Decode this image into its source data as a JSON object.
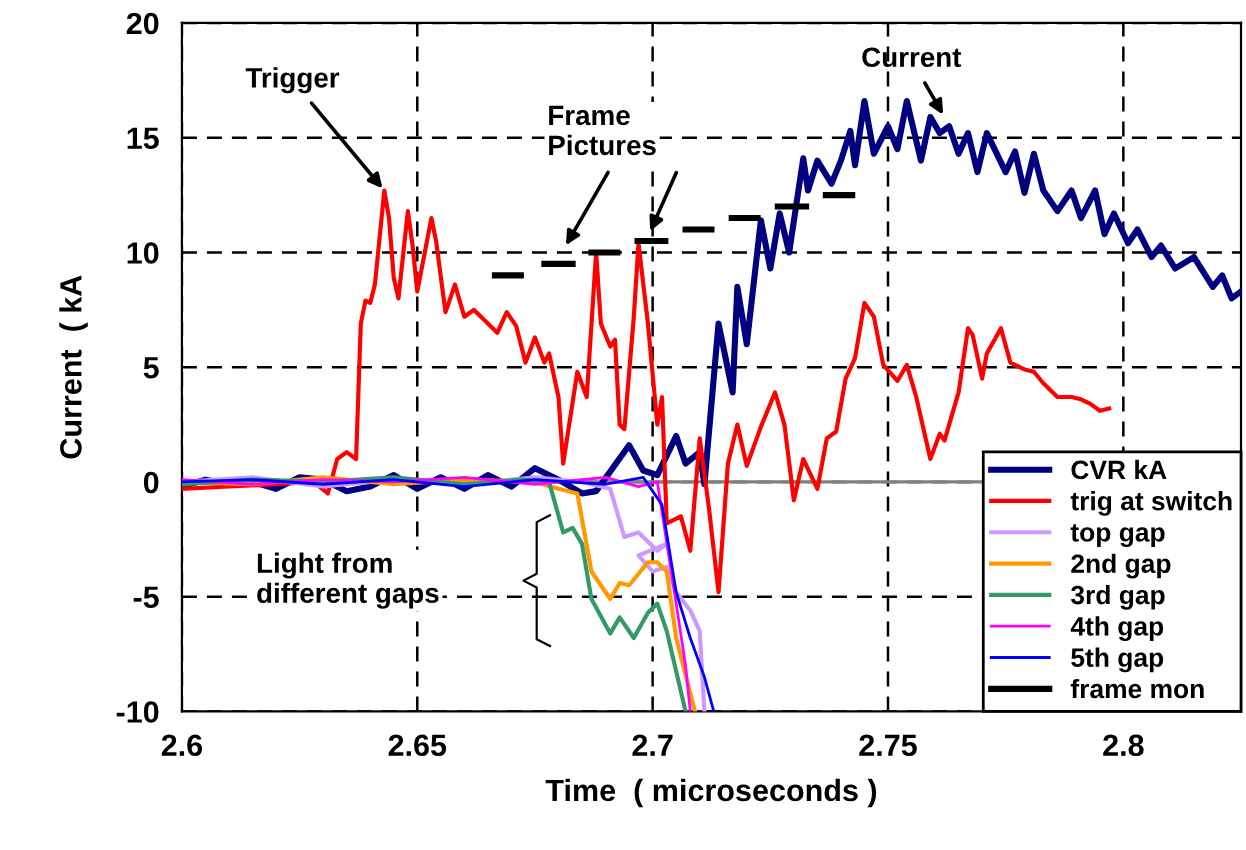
{
  "chart_data": {
    "type": "line",
    "xlabel": "Time  ( microseconds )",
    "ylabel": "Current  ( kA",
    "xlim": [
      2.6,
      2.825
    ],
    "xticks": [
      2.6,
      2.65,
      2.7,
      2.75,
      2.8
    ],
    "ylim": [
      -10,
      20
    ],
    "yticks": [
      -10,
      -5,
      0,
      5,
      10,
      15,
      20
    ],
    "grid": true,
    "legend": "bottom right",
    "marker": "none",
    "line_style": "solid",
    "ref_lines": [
      {
        "axis": "y",
        "value": 0,
        "color": "#808080"
      }
    ],
    "annotations": [
      {
        "text": "Trigger",
        "x": 2.643,
        "y": 12.7
      },
      "Frame\nPictures",
      {
        "text": "Current",
        "x": 2.762,
        "y": 15.9
      },
      "Light from\ndifferent gaps"
    ],
    "series": [
      {
        "name": "CVR kA",
        "color": "#000080",
        "x": [
          2.6,
          2.605,
          2.61,
          2.615,
          2.62,
          2.625,
          2.63,
          2.635,
          2.64,
          2.645,
          2.65,
          2.655,
          2.66,
          2.665,
          2.67,
          2.675,
          2.68,
          2.685,
          2.688,
          2.695,
          2.698,
          2.701,
          2.705,
          2.707,
          2.71,
          2.711,
          2.714,
          2.717,
          2.718,
          2.72,
          2.723,
          2.725,
          2.727,
          2.729,
          2.732,
          2.733,
          2.735,
          2.738,
          2.74,
          2.742,
          2.743,
          2.745,
          2.747,
          2.75,
          2.752,
          2.754,
          2.757,
          2.759,
          2.761,
          2.763,
          2.765,
          2.767,
          2.769,
          2.771,
          2.775,
          2.777,
          2.779,
          2.781,
          2.783,
          2.786,
          2.789,
          2.791,
          2.794,
          2.796,
          2.798,
          2.801,
          2.803,
          2.806,
          2.808,
          2.811,
          2.815,
          2.819,
          2.821,
          2.823,
          2.825
        ],
        "values": [
          -0.2,
          0.1,
          -0.1,
          0,
          -0.3,
          0.2,
          0.1,
          -0.4,
          -0.2,
          0.3,
          -0.3,
          0.2,
          -0.3,
          0.3,
          -0.2,
          0.6,
          0.1,
          -0.5,
          -0.4,
          1.6,
          0.5,
          0.3,
          2,
          0.8,
          1.3,
          -0.1,
          6.9,
          3.9,
          8.5,
          6,
          11.4,
          9.3,
          11.7,
          10,
          14.1,
          12.7,
          14,
          13,
          14,
          15.3,
          13.8,
          16.6,
          14.3,
          15.5,
          14.5,
          16.6,
          14,
          15.9,
          15.2,
          15.5,
          14.3,
          15.2,
          13.5,
          15.2,
          13.5,
          14.4,
          12.6,
          14.3,
          12.7,
          11.8,
          12.7,
          11.5,
          12.7,
          10.8,
          11.7,
          10.4,
          11,
          9.8,
          10.3,
          9.3,
          9.8,
          8.5,
          9,
          8,
          8.3
        ]
      },
      {
        "name": "trig at switch",
        "color": "#ff0000",
        "x": [
          2.6,
          2.61,
          2.62,
          2.628,
          2.631,
          2.633,
          2.635,
          2.637,
          2.638,
          2.639,
          2.64,
          2.641,
          2.643,
          2.644,
          2.645,
          2.646,
          2.648,
          2.649,
          2.65,
          2.653,
          2.654,
          2.656,
          2.658,
          2.66,
          2.662,
          2.665,
          2.667,
          2.669,
          2.671,
          2.673,
          2.675,
          2.677,
          2.678,
          2.68,
          2.681,
          2.684,
          2.686,
          2.688,
          2.689,
          2.691,
          2.692,
          2.693,
          2.694,
          2.696,
          2.697,
          2.699,
          2.701,
          2.702,
          2.703,
          2.706,
          2.708,
          2.71,
          2.712,
          2.714,
          2.716,
          2.718,
          2.72,
          2.723,
          2.726,
          2.728,
          2.73,
          2.732,
          2.735,
          2.737,
          2.739,
          2.741,
          2.743,
          2.745,
          2.747,
          2.749,
          2.752,
          2.754,
          2.756,
          2.759,
          2.761,
          2.762,
          2.765,
          2.767,
          2.768,
          2.77,
          2.771,
          2.774,
          2.776,
          2.779,
          2.781,
          2.783,
          2.786,
          2.789,
          2.791,
          2.793,
          2.795,
          2.797
        ],
        "values": [
          -0.3,
          -0.2,
          -0.1,
          0,
          -0.5,
          1,
          1.3,
          1,
          6.9,
          7.9,
          7.8,
          8.6,
          12.7,
          11.5,
          8.9,
          8,
          11.8,
          10.3,
          8.3,
          11.5,
          10.5,
          7.4,
          8.6,
          7.2,
          7.5,
          6.9,
          6.5,
          7.4,
          6.8,
          5.2,
          6.3,
          5.2,
          5.6,
          3.7,
          0.8,
          4.8,
          3.7,
          10,
          6.9,
          5.9,
          6.2,
          2.5,
          2.3,
          7.2,
          10.4,
          6.9,
          2.5,
          3.7,
          -1.8,
          -1.5,
          -3,
          1.9,
          -1.2,
          -4.8,
          0.8,
          2.5,
          0.7,
          2.4,
          3.9,
          2.5,
          -0.8,
          1,
          -0.3,
          1.9,
          2.2,
          4.5,
          5.4,
          7.8,
          7.2,
          5.1,
          4.4,
          5.1,
          3.7,
          1,
          2.1,
          1.8,
          3.9,
          6.7,
          6.4,
          4.5,
          5.6,
          6.7,
          5.2,
          4.9,
          4.8,
          4.3,
          3.7,
          3.7,
          3.6,
          3.4,
          3.1,
          3.2
        ]
      },
      {
        "name": "top gap",
        "color": "#cc99ff",
        "x": [
          2.6,
          2.615,
          2.63,
          2.645,
          2.66,
          2.675,
          2.685,
          2.691,
          2.694,
          2.697,
          2.701,
          2.703,
          2.697,
          2.7,
          2.703,
          2.705,
          2.708,
          2.71,
          2.711
        ],
        "values": [
          0,
          0.2,
          -0.2,
          0.1,
          -0.1,
          0.2,
          0,
          -0.3,
          -2.4,
          -2.2,
          -3,
          -2.7,
          -3.2,
          -3.9,
          -3.7,
          -4.8,
          -5.6,
          -6.5,
          -10
        ]
      },
      {
        "name": "2nd gap",
        "color": "#ff9900",
        "x": [
          2.6,
          2.615,
          2.63,
          2.645,
          2.66,
          2.675,
          2.68,
          2.684,
          2.687,
          2.691,
          2.693,
          2.695,
          2.699,
          2.701,
          2.703,
          2.705,
          2.709
        ],
        "values": [
          0,
          -0.1,
          0.2,
          -0.1,
          0.1,
          0,
          -0.3,
          -0.5,
          -3.9,
          -5.1,
          -4.4,
          -4.5,
          -3.5,
          -3.5,
          -3.9,
          -6.8,
          -10
        ]
      },
      {
        "name": "3rd gap",
        "color": "#339966",
        "x": [
          2.6,
          2.615,
          2.63,
          2.645,
          2.66,
          2.672,
          2.678,
          2.681,
          2.683,
          2.685,
          2.687,
          2.691,
          2.693,
          2.696,
          2.699,
          2.701,
          2.703,
          2.707
        ],
        "values": [
          -0.1,
          0.1,
          0,
          0.2,
          -0.1,
          0.1,
          0,
          -2.2,
          -2,
          -2.7,
          -5.1,
          -6.6,
          -5.9,
          -6.8,
          -5.7,
          -5.3,
          -6.5,
          -10
        ]
      },
      {
        "name": "4th gap",
        "color": "#ff00ff",
        "x": [
          2.6,
          2.615,
          2.63,
          2.645,
          2.66,
          2.675,
          2.69,
          2.697,
          2.701,
          2.705,
          2.707,
          2.708
        ],
        "values": [
          0.1,
          -0.1,
          0.1,
          0,
          0.2,
          -0.1,
          0.2,
          -0.2,
          0,
          -5.3,
          -8,
          -10
        ]
      },
      {
        "name": "5th gap",
        "color": "#0000ff",
        "x": [
          2.6,
          2.615,
          2.63,
          2.645,
          2.66,
          2.675,
          2.69,
          2.698,
          2.702,
          2.705,
          2.708,
          2.711,
          2.713
        ],
        "values": [
          0,
          0.1,
          -0.1,
          0.1,
          -0.2,
          0.1,
          -0.1,
          0.2,
          -1,
          -4.8,
          -6.8,
          -8.5,
          -10
        ]
      },
      {
        "name": "frame mon",
        "color": "#000000",
        "x": [
          2.6665,
          2.672,
          2.674,
          2.677,
          2.683,
          2.685,
          2.687,
          2.6925,
          2.694,
          2.6968,
          2.7027,
          2.705,
          2.707,
          2.7125,
          2.714,
          2.7168,
          2.7223,
          2.724,
          2.7266,
          2.7326,
          2.734,
          2.7368,
          2.7424
        ],
        "values": [
          9,
          9,
          null,
          9.5,
          9.5,
          null,
          10,
          10,
          null,
          10.5,
          10.5,
          null,
          11,
          11,
          null,
          11.5,
          11.5,
          null,
          12,
          12,
          null,
          12.5,
          12.5
        ]
      }
    ]
  }
}
